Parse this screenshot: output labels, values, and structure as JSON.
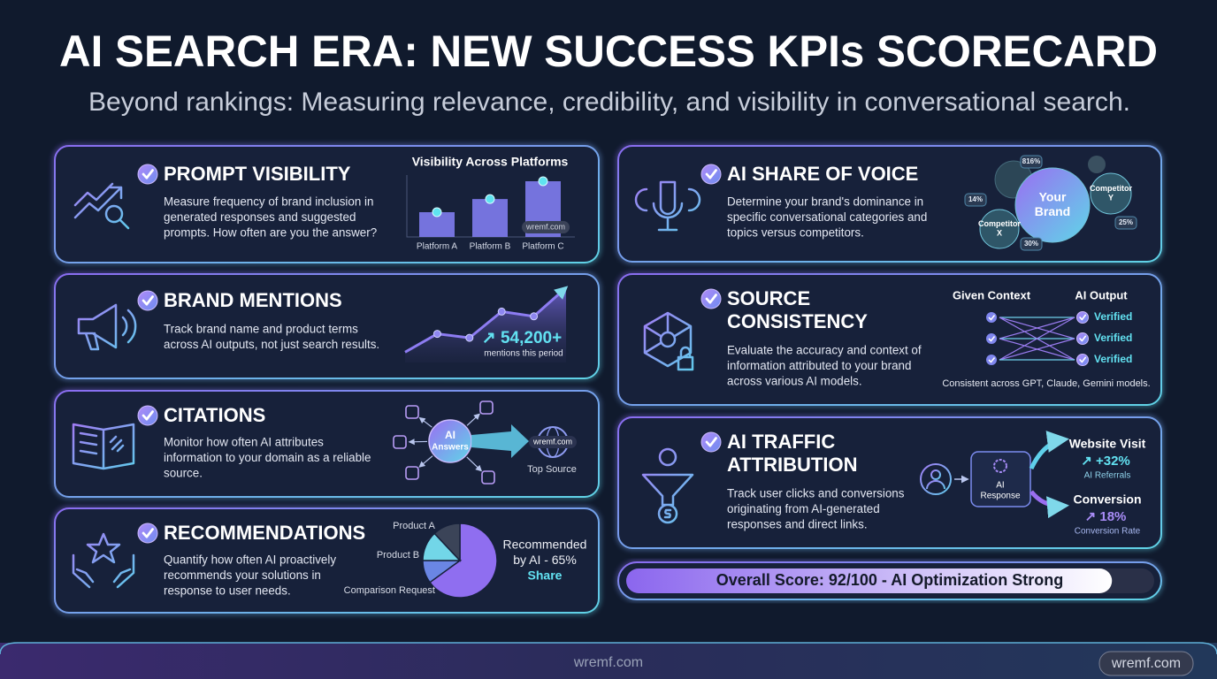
{
  "header": {
    "title": "AI SEARCH ERA: NEW SUCCESS KPIs SCORECARD",
    "subtitle": "Beyond rankings: Measuring relevance, credibility, and visibility in conversational search."
  },
  "cards": [
    {
      "title": [
        "PROMPT VISIBILITY"
      ],
      "description": [
        "Measure frequency of brand inclusion in",
        "generated responses and suggested",
        "prompts. How often are you the answer?"
      ],
      "chart": {
        "type": "bar",
        "title": "Visibility Across Platforms",
        "categories": [
          "Platform A",
          "Platform B",
          "Platform C"
        ],
        "values": [
          32,
          49,
          72
        ],
        "ylim": [
          0,
          80
        ],
        "color": "#7f7cf0",
        "watermark": "wremf.com"
      }
    },
    {
      "title": [
        "BRAND MENTIONS"
      ],
      "description": [
        "Track brand name and product terms",
        "across AI outputs, not just search results."
      ],
      "chart": {
        "type": "line",
        "values": [
          13,
          36,
          31,
          64,
          58,
          94
        ],
        "ylim": [
          0,
          100
        ],
        "color": "#8d7cf2",
        "highlight": "↗ 54,200+",
        "highlight_caption": "mentions this period"
      }
    },
    {
      "title": [
        "CITATIONS"
      ],
      "description": [
        "Monitor how often AI attributes",
        "information to your domain as a reliable",
        "source."
      ],
      "chart": {
        "type": "network",
        "hub": [
          "AI",
          "Answers"
        ],
        "target": "wremf.com",
        "target_caption": "Top Source"
      }
    },
    {
      "title": [
        "RECOMMENDATIONS"
      ],
      "description": [
        "Quantify how often AI proactively",
        "recommends your solutions in",
        "response to user needs."
      ],
      "chart": {
        "type": "pie",
        "categories": [
          null,
          "Comparison Request",
          "Product B",
          "Product A"
        ],
        "values": [
          65,
          10,
          13,
          12
        ],
        "colors": [
          "#8f6ef0",
          "#6a86e4",
          "#72d6e8",
          "#3b4458"
        ],
        "callout": [
          "Recommended",
          "by AI - 65%",
          "Share"
        ]
      }
    },
    {
      "title": [
        "AI SHARE OF VOICE"
      ],
      "description": [
        "Determine your brand's dominance in",
        "specific conversational categories and",
        "topics versus competitors."
      ],
      "chart": {
        "type": "bubbles",
        "bubbles": [
          {
            "label": [
              "Your",
              "Brand"
            ]
          },
          {
            "label": [
              "Competitor",
              "Y"
            ]
          },
          {
            "label": [
              "Competitor",
              "X"
            ]
          }
        ],
        "badges": [
          "816%",
          "14%",
          "25%",
          "30%"
        ]
      }
    },
    {
      "title": [
        "SOURCE",
        "CONSISTENCY"
      ],
      "description": [
        "Evaluate the accuracy and context of",
        "information attributed to your brand",
        "across various AI models."
      ],
      "chart": {
        "type": "mapping",
        "left_title": "Given Context",
        "right_title": "AI Output",
        "outputs": [
          "Verified",
          "Verified",
          "Verified"
        ],
        "footnote": "Consistent across GPT, Claude, Gemini models."
      }
    },
    {
      "title": [
        "AI TRAFFIC",
        "ATTRIBUTION"
      ],
      "description": [
        "Track user clicks and conversions",
        "originating from AI-generated",
        "responses and direct links."
      ],
      "chart": {
        "type": "flow",
        "hub": [
          "AI",
          "Response"
        ],
        "outcomes": [
          {
            "title": "Website Visit",
            "value": "↗ +32%",
            "caption": "AI Referrals"
          },
          {
            "title": "Conversion",
            "value": "↗ 18%",
            "caption": "Conversion Rate"
          }
        ]
      }
    }
  ],
  "score": {
    "label": "Overall Score: 92/100 - AI Optimization Strong",
    "value": 92,
    "max": 100
  },
  "footer": {
    "text": "wremf.com",
    "badge": "wremf.com"
  }
}
